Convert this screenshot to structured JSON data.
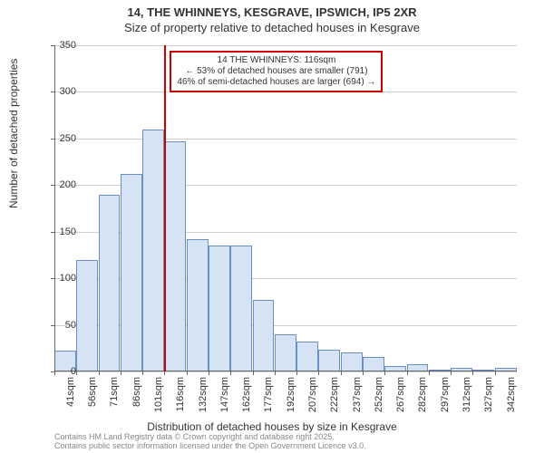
{
  "title_line1": "14, THE WHINNEYS, KESGRAVE, IPSWICH, IP5 2XR",
  "title_line2": "Size of property relative to detached houses in Kesgrave",
  "y_axis_label": "Number of detached properties",
  "x_axis_label": "Distribution of detached houses by size in Kesgrave",
  "footer_line1": "Contains HM Land Registry data © Crown copyright and database right 2025.",
  "footer_line2": "Contains public sector information licensed under the Open Government Licence v3.0.",
  "annotation": {
    "line1": "14 THE WHINNEYS: 116sqm",
    "line2": "← 53% of detached houses are smaller (791)",
    "line3": "46% of semi-detached houses are larger (694) →"
  },
  "chart": {
    "type": "histogram",
    "ylim": [
      0,
      350
    ],
    "ytick_step": 50,
    "bar_fill": "#d6e3f5",
    "bar_stroke": "#6a8fc5",
    "grid_color": "#d0d0d0",
    "marker_color": "#cc0000",
    "marker_x_index": 5,
    "bars": [
      {
        "label": "41sqm",
        "value": 22
      },
      {
        "label": "56sqm",
        "value": 120
      },
      {
        "label": "71sqm",
        "value": 190
      },
      {
        "label": "86sqm",
        "value": 212
      },
      {
        "label": "101sqm",
        "value": 260
      },
      {
        "label": "116sqm",
        "value": 247
      },
      {
        "label": "132sqm",
        "value": 142
      },
      {
        "label": "147sqm",
        "value": 135
      },
      {
        "label": "162sqm",
        "value": 135
      },
      {
        "label": "177sqm",
        "value": 77
      },
      {
        "label": "192sqm",
        "value": 40
      },
      {
        "label": "207sqm",
        "value": 32
      },
      {
        "label": "222sqm",
        "value": 23
      },
      {
        "label": "237sqm",
        "value": 20
      },
      {
        "label": "252sqm",
        "value": 16
      },
      {
        "label": "267sqm",
        "value": 6
      },
      {
        "label": "282sqm",
        "value": 8
      },
      {
        "label": "297sqm",
        "value": 2
      },
      {
        "label": "312sqm",
        "value": 4
      },
      {
        "label": "327sqm",
        "value": 2
      },
      {
        "label": "342sqm",
        "value": 4
      }
    ]
  }
}
